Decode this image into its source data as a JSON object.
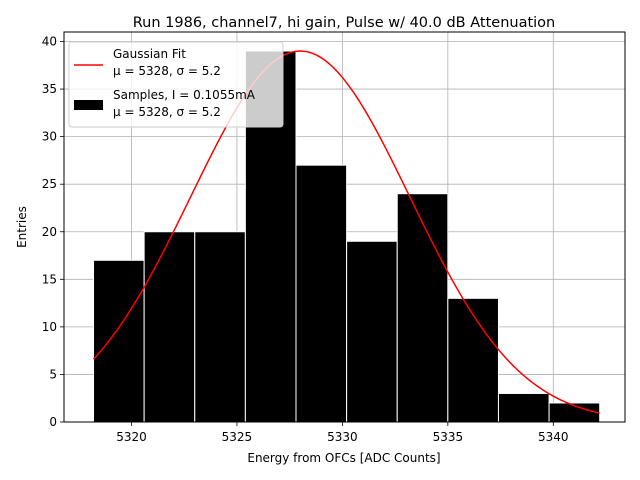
{
  "chart_data": {
    "type": "bar",
    "title": "Run 1986, channel7, hi gain, Pulse w/ 40.0 dB Attenuation",
    "xlabel": "Energy from OFCs [ADC Counts]",
    "ylabel": "Entries",
    "xlim": [
      5316.8,
      5343.4
    ],
    "ylim": [
      0,
      41
    ],
    "grid": true,
    "legend_position": "top-left",
    "bin_edges": [
      5318.2,
      5320.6,
      5323.0,
      5325.4,
      5327.8,
      5330.2,
      5332.6,
      5335.0,
      5337.4,
      5339.8,
      5342.2
    ],
    "values": [
      17,
      20,
      20,
      39,
      27,
      19,
      24,
      13,
      3,
      2
    ],
    "x_ticks": [
      5320,
      5325,
      5330,
      5335,
      5340
    ],
    "x_tick_labels": [
      "5320",
      "5325",
      "5330",
      "5335",
      "5340"
    ],
    "y_ticks": [
      0,
      5,
      10,
      15,
      20,
      25,
      30,
      35,
      40
    ],
    "y_tick_labels": [
      "0",
      "5",
      "10",
      "15",
      "20",
      "25",
      "30",
      "35",
      "40"
    ],
    "fit": {
      "mu": 5328,
      "sigma": 5.2,
      "amplitude": 39,
      "x_start": 5318.2,
      "x_end": 5342.2,
      "color": "#ff0000"
    },
    "bar_color": "#000000",
    "bar_edge_color": "#ffffff",
    "grid_color": "#b0b0b0",
    "legend": [
      {
        "label": "Gaussian Fit",
        "stats": "μ = 5328, σ = 5.2",
        "marker": "line",
        "color": "#ff0000"
      },
      {
        "label": "Samples, I = 0.1055mA",
        "stats": "μ = 5328, σ = 5.2",
        "marker": "patch",
        "color": "#000000"
      }
    ]
  }
}
